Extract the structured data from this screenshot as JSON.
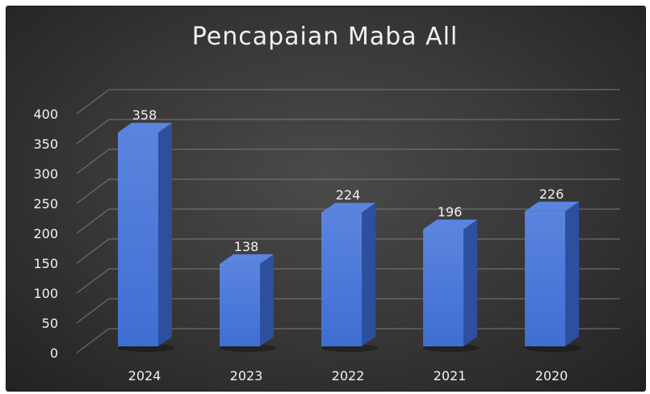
{
  "chart_data": {
    "type": "bar",
    "title": "Pencapaian Maba All",
    "categories": [
      "2024",
      "2023",
      "2022",
      "2021",
      "2020"
    ],
    "values": [
      358,
      138,
      224,
      196,
      226
    ],
    "ylim": [
      0,
      400
    ],
    "yticks": [
      0,
      50,
      100,
      150,
      200,
      250,
      300,
      350,
      400
    ],
    "xlabel": "",
    "ylabel": "",
    "grid": true,
    "style": "3d-column",
    "colors": {
      "bar_front": "#3f6ed3",
      "bar_side": "#2d4f9e",
      "bar_top": "#5a84de",
      "background": "#333333"
    }
  }
}
